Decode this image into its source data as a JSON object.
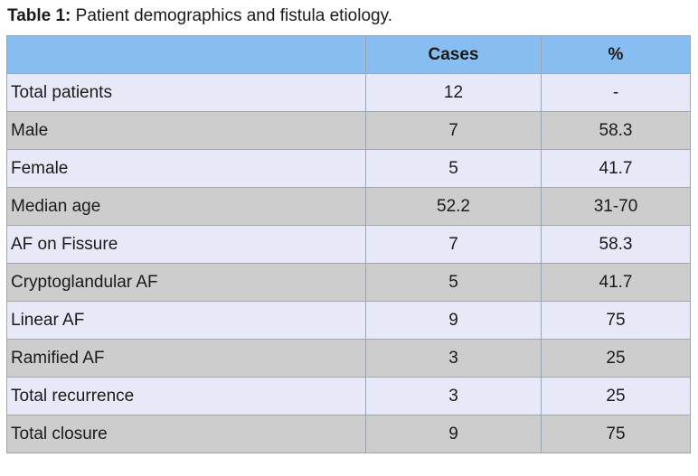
{
  "caption": {
    "label": "Table 1:",
    "text": " Patient demographics and fistula etiology."
  },
  "table": {
    "headers": [
      "",
      "Cases",
      "%"
    ],
    "rows": [
      {
        "name": "Total patients",
        "cases": "12",
        "pct": "-"
      },
      {
        "name": "Male",
        "cases": "7",
        "pct": "58.3"
      },
      {
        "name": "Female",
        "cases": "5",
        "pct": "41.7"
      },
      {
        "name": "Median age",
        "cases": "52.2",
        "pct": "31-70"
      },
      {
        "name": "AF on Fissure",
        "cases": "7",
        "pct": "58.3"
      },
      {
        "name": "Cryptoglandular AF",
        "cases": "5",
        "pct": "41.7"
      },
      {
        "name": "Linear AF",
        "cases": "9",
        "pct": "75"
      },
      {
        "name": "Ramified AF",
        "cases": "3",
        "pct": "25"
      },
      {
        "name": "Total recurrence",
        "cases": "3",
        "pct": "25"
      },
      {
        "name": "Total closure",
        "cases": "9",
        "pct": "75"
      }
    ]
  },
  "colors": {
    "header_bg": "#87bdf0",
    "row_odd_bg": "#e7e9f8",
    "row_even_bg": "#cdcdcd",
    "border": "#9aa6b4"
  }
}
